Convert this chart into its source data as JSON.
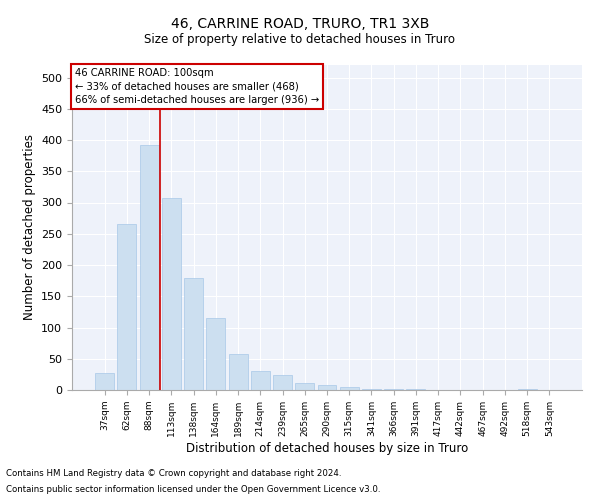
{
  "title1": "46, CARRINE ROAD, TRURO, TR1 3XB",
  "title2": "Size of property relative to detached houses in Truro",
  "xlabel": "Distribution of detached houses by size in Truro",
  "ylabel": "Number of detached properties",
  "footnote1": "Contains HM Land Registry data © Crown copyright and database right 2024.",
  "footnote2": "Contains public sector information licensed under the Open Government Licence v3.0.",
  "annotation_line1": "46 CARRINE ROAD: 100sqm",
  "annotation_line2": "← 33% of detached houses are smaller (468)",
  "annotation_line3": "66% of semi-detached houses are larger (936) →",
  "bar_labels": [
    "37sqm",
    "62sqm",
    "88sqm",
    "113sqm",
    "138sqm",
    "164sqm",
    "189sqm",
    "214sqm",
    "239sqm",
    "265sqm",
    "290sqm",
    "315sqm",
    "341sqm",
    "366sqm",
    "391sqm",
    "417sqm",
    "442sqm",
    "467sqm",
    "492sqm",
    "518sqm",
    "543sqm"
  ],
  "bar_values": [
    28,
    265,
    392,
    308,
    180,
    115,
    58,
    30,
    24,
    12,
    8,
    5,
    2,
    1,
    1,
    0,
    0,
    0,
    0,
    2,
    0
  ],
  "bar_color": "#ccdff0",
  "bar_edge_color": "#a8c8e8",
  "marker_color": "#cc0000",
  "background_color": "#eef2fa",
  "grid_color": "#ffffff",
  "ylim": [
    0,
    520
  ],
  "yticks": [
    0,
    50,
    100,
    150,
    200,
    250,
    300,
    350,
    400,
    450,
    500
  ]
}
